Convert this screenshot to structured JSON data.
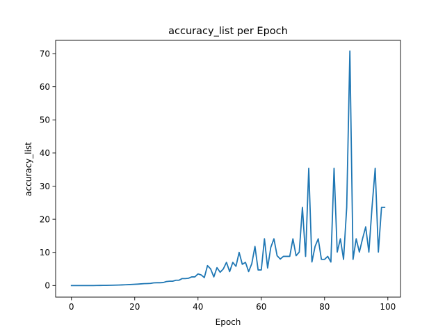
{
  "chart_data": {
    "type": "line",
    "title": "accuracy_list per Epoch",
    "xlabel": "Epoch",
    "ylabel": "accuracy_list",
    "xlim": [
      -5,
      104
    ],
    "ylim": [
      -3.5,
      74
    ],
    "xticks": [
      0,
      20,
      40,
      60,
      80,
      100
    ],
    "yticks": [
      0,
      10,
      20,
      30,
      40,
      50,
      60,
      70
    ],
    "grid": false,
    "legend": "none",
    "series": [
      {
        "color": "#1f77b4",
        "x": [
          0,
          1,
          2,
          3,
          4,
          5,
          6,
          7,
          8,
          9,
          10,
          11,
          12,
          13,
          14,
          15,
          16,
          17,
          18,
          19,
          20,
          21,
          22,
          23,
          24,
          25,
          26,
          27,
          28,
          29,
          30,
          31,
          32,
          33,
          34,
          35,
          36,
          37,
          38,
          39,
          40,
          41,
          42,
          43,
          44,
          45,
          46,
          47,
          48,
          49,
          50,
          51,
          52,
          53,
          54,
          55,
          56,
          57,
          58,
          59,
          60,
          61,
          62,
          63,
          64,
          65,
          66,
          67,
          68,
          69,
          70,
          71,
          72,
          73,
          74,
          75,
          76,
          77,
          78,
          79,
          80,
          81,
          82,
          83,
          84,
          85,
          86,
          87,
          88,
          89,
          90,
          91,
          92,
          93,
          94,
          95,
          96,
          97,
          98,
          99
        ],
        "y": [
          0.0,
          0.0,
          0.0,
          0.0,
          0.0,
          0.0,
          0.0,
          0.0,
          0.02,
          0.03,
          0.04,
          0.05,
          0.07,
          0.09,
          0.12,
          0.15,
          0.19,
          0.23,
          0.27,
          0.32,
          0.37,
          0.43,
          0.5,
          0.57,
          0.6,
          0.65,
          0.8,
          0.85,
          0.85,
          0.9,
          1.2,
          1.3,
          1.3,
          1.6,
          1.6,
          2.1,
          2.1,
          2.2,
          2.6,
          2.6,
          3.5,
          3.2,
          2.4,
          6.0,
          5.0,
          2.6,
          5.4,
          4.0,
          5.0,
          7.0,
          4.2,
          7.0,
          5.8,
          10.0,
          6.4,
          7.0,
          4.2,
          6.6,
          11.8,
          4.7,
          4.7,
          14.1,
          5.3,
          11.5,
          14.1,
          9.0,
          8.0,
          8.8,
          8.8,
          8.8,
          14.1,
          9.0,
          10.1,
          23.6,
          8.8,
          35.4,
          7.1,
          11.8,
          14.1,
          7.9,
          7.9,
          8.8,
          7.1,
          35.4,
          10.1,
          14.1,
          7.9,
          23.6,
          70.8,
          7.9,
          14.1,
          10.1,
          14.1,
          17.7,
          10.1,
          23.6,
          35.4,
          10.1,
          23.6,
          23.6
        ]
      }
    ]
  }
}
